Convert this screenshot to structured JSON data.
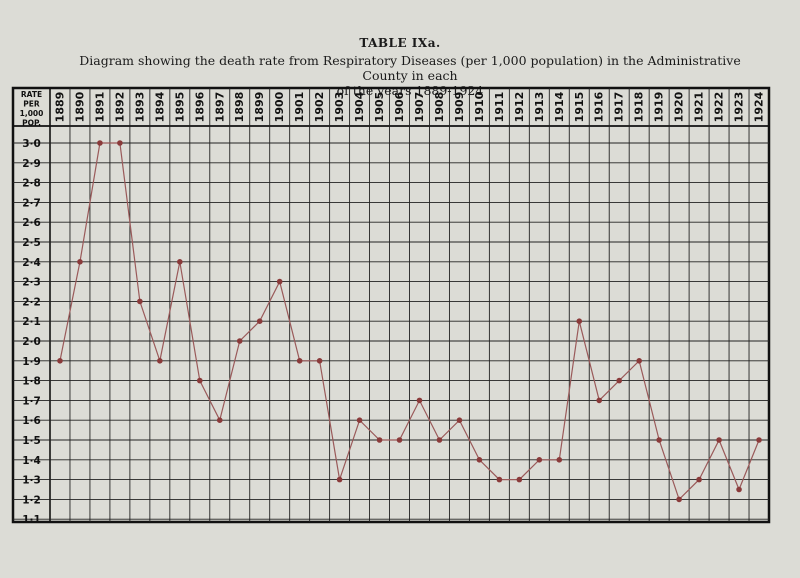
{
  "header": {
    "table_label": "TABLE IXa.",
    "caption_line1": "Diagram showing the death rate from Respiratory Diseases (per 1,000 population) in the Administrative County in each",
    "caption_line2": "of the years 1889-1924"
  },
  "chart_data": {
    "type": "line",
    "corner_label": [
      "RATE",
      "PER",
      "1,000",
      "POP."
    ],
    "x": [
      "1889",
      "1890",
      "1891",
      "1892",
      "1893",
      "1894",
      "1895",
      "1896",
      "1897",
      "1898",
      "1899",
      "1900",
      "1901",
      "1902",
      "1903",
      "1904",
      "1905",
      "1906",
      "1907",
      "1908",
      "1909",
      "1910",
      "1911",
      "1912",
      "1913",
      "1914",
      "1915",
      "1916",
      "1917",
      "1918",
      "1919",
      "1920",
      "1921",
      "1922",
      "1923",
      "1924"
    ],
    "y_ticks": [
      "3·0",
      "2·9",
      "2·8",
      "2·7",
      "2·6",
      "2·5",
      "2·4",
      "2·3",
      "2·2",
      "2·1",
      "2·0",
      "1·9",
      "1·8",
      "1·7",
      "1·6",
      "1·5",
      "1·4",
      "1·3",
      "1·2",
      "1·1"
    ],
    "ylim": [
      1.1,
      3.0
    ],
    "values": [
      1.9,
      2.4,
      3.0,
      3.0,
      2.2,
      1.9,
      2.4,
      1.8,
      1.6,
      2.0,
      2.1,
      2.3,
      1.9,
      1.9,
      1.3,
      1.6,
      1.5,
      1.5,
      1.7,
      1.5,
      1.6,
      1.4,
      1.3,
      1.3,
      1.4,
      1.4,
      2.1,
      1.7,
      1.8,
      1.9,
      1.5,
      1.2,
      1.3,
      1.5,
      1.25,
      1.5
    ],
    "grid": true,
    "line_color": "#9a5a5a",
    "marker_color": "#8a3a3a"
  }
}
